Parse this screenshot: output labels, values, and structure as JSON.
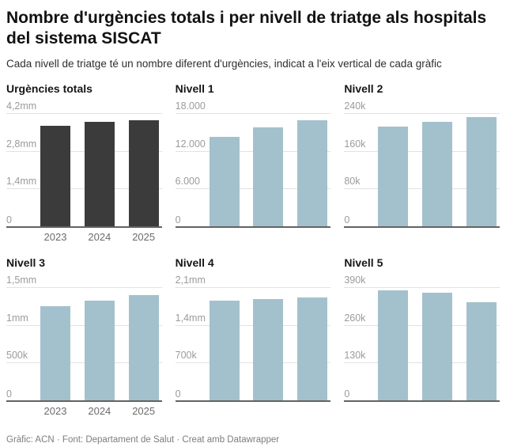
{
  "header": {
    "title": "Nombre d'urgències totals i per nivell de triatge als hospitals del sistema SISCAT",
    "subtitle": "Cada nivell de triatge té un nombre diferent d'urgències, indicat a l'eix vertical de cada gràfic"
  },
  "footer": {
    "credit": "Gràfic: ACN · Font: Departament de Salut · Creat amb Datawrapper"
  },
  "colors": {
    "total_bar": "#3b3b3b",
    "level_bar": "#a3c1cc",
    "gridline": "#e2e2e2",
    "baseline": "#636363",
    "tick_label": "#9b9b9b"
  },
  "chart_data": [
    {
      "type": "bar",
      "title": "Urgències totals",
      "categories": [
        "2023",
        "2024",
        "2025"
      ],
      "values": [
        3740000,
        3870000,
        3940000
      ],
      "ylim": [
        0,
        4200000
      ],
      "ymax": 4200000,
      "ytick_labels": [
        "4,2mm",
        "2,8mm",
        "1,4mm",
        "0"
      ],
      "grid": "horizontal",
      "bar_color": "#3b3b3b",
      "show_x_labels": true
    },
    {
      "type": "bar",
      "title": "Nivell 1",
      "categories": [
        "2023",
        "2024",
        "2025"
      ],
      "values": [
        14200,
        15700,
        16900
      ],
      "ylim": [
        0,
        18000
      ],
      "ymax": 18000,
      "ytick_labels": [
        "18.000",
        "12.000",
        "6.000",
        "0"
      ],
      "grid": "horizontal",
      "bar_color": "#a3c1cc",
      "show_x_labels": false
    },
    {
      "type": "bar",
      "title": "Nivell 2",
      "categories": [
        "2023",
        "2024",
        "2025"
      ],
      "values": [
        211000,
        222000,
        232000
      ],
      "ylim": [
        0,
        240000
      ],
      "ymax": 240000,
      "ytick_labels": [
        "240k",
        "160k",
        "80k",
        "0"
      ],
      "grid": "horizontal",
      "bar_color": "#a3c1cc",
      "show_x_labels": false
    },
    {
      "type": "bar",
      "title": "Nivell 3",
      "categories": [
        "2023",
        "2024",
        "2025"
      ],
      "values": [
        1250000,
        1320000,
        1400000
      ],
      "ylim": [
        0,
        1500000
      ],
      "ymax": 1500000,
      "ytick_labels": [
        "1,5mm",
        "1mm",
        "500k",
        "0"
      ],
      "grid": "horizontal",
      "bar_color": "#a3c1cc",
      "show_x_labels": true
    },
    {
      "type": "bar",
      "title": "Nivell 4",
      "categories": [
        "2023",
        "2024",
        "2025"
      ],
      "values": [
        1850000,
        1875000,
        1910000
      ],
      "ylim": [
        0,
        2100000
      ],
      "ymax": 2100000,
      "ytick_labels": [
        "2,1mm",
        "1,4mm",
        "700k",
        "0"
      ],
      "grid": "horizontal",
      "bar_color": "#a3c1cc",
      "show_x_labels": false
    },
    {
      "type": "bar",
      "title": "Nivell 5",
      "categories": [
        "2023",
        "2024",
        "2025"
      ],
      "values": [
        378000,
        370000,
        338000
      ],
      "ylim": [
        0,
        390000
      ],
      "ymax": 390000,
      "ytick_labels": [
        "390k",
        "260k",
        "130k",
        "0"
      ],
      "grid": "horizontal",
      "bar_color": "#a3c1cc",
      "show_x_labels": false
    }
  ]
}
